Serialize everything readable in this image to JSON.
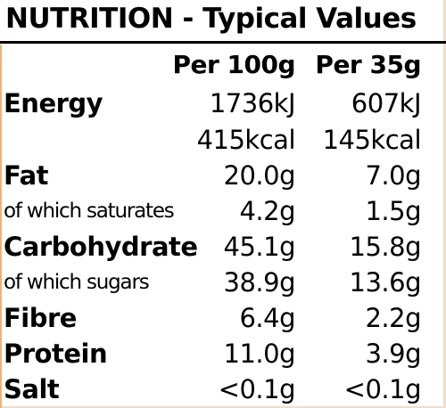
{
  "title": "NUTRITION - Typical Values",
  "columns": {
    "per_100g": "Per 100g",
    "per_portion": "Per 35g"
  },
  "rows": [
    {
      "label": "Energy",
      "per_100g": "1736kJ",
      "per_portion": "607kJ",
      "style": "bold"
    },
    {
      "label": "",
      "per_100g": "415kcal",
      "per_portion": "145kcal",
      "style": "bold"
    },
    {
      "label": "Fat",
      "per_100g": "20.0g",
      "per_portion": "7.0g",
      "style": "bold"
    },
    {
      "label": "of which saturates",
      "per_100g": "4.2g",
      "per_portion": "1.5g",
      "style": "sub"
    },
    {
      "label": "Carbohydrate",
      "per_100g": "45.1g",
      "per_portion": "15.8g",
      "style": "bold"
    },
    {
      "label": "of which sugars",
      "per_100g": "38.9g",
      "per_portion": "13.6g",
      "style": "sub"
    },
    {
      "label": "Fibre",
      "per_100g": "6.4g",
      "per_portion": "2.2g",
      "style": "bold"
    },
    {
      "label": "Protein",
      "per_100g": "11.0g",
      "per_portion": "3.9g",
      "style": "bold"
    },
    {
      "label": "Salt",
      "per_100g": "<0.1g",
      "per_portion": "<0.1g",
      "style": "bold"
    }
  ]
}
